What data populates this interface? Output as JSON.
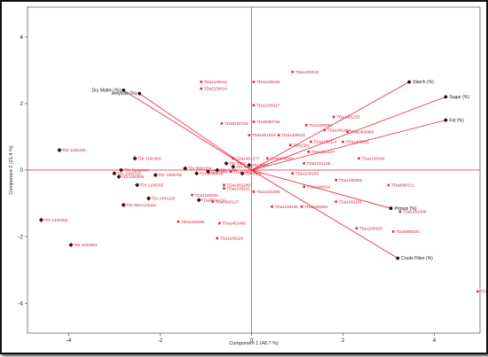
{
  "chart_data": {
    "type": "scatter",
    "xlabel": "Component 1  (48.7 %)",
    "ylabel": "Component 2  (21.4 %)",
    "xlim": [
      -4.9,
      5.0
    ],
    "ylim": [
      -4.9,
      4.9
    ],
    "xticks": [
      -4,
      -2,
      0,
      2,
      4
    ],
    "yticks": [
      -4,
      -2,
      0,
      2,
      4
    ],
    "accent_color": "#e8243a",
    "origin_lines_color": "#e8243a",
    "variables": [
      {
        "label": "Dry Matter (%)",
        "x": -2.8,
        "y": 2.4
      },
      {
        "label": "Amylose (%)",
        "x": -2.45,
        "y": 2.3
      },
      {
        "label": "Starch (%)",
        "x": 3.45,
        "y": 2.65
      },
      {
        "label": "Sugar (%)",
        "x": 4.25,
        "y": 2.2
      },
      {
        "label": "Fat (%)",
        "x": 4.25,
        "y": 1.5
      },
      {
        "label": "Protein (%)",
        "x": 3.05,
        "y": -1.15
      },
      {
        "label": "Crude Fibre (%)",
        "x": 3.2,
        "y": -2.65
      }
    ],
    "series": [
      {
        "name": "TDr",
        "marker": "diamond",
        "points": [
          {
            "label": "TDr 1400359",
            "x": -4.6,
            "y": -1.5
          },
          {
            "label": "TDr 1100053",
            "x": -3.95,
            "y": -2.25
          },
          {
            "label": "TDr 1100490",
            "x": -4.2,
            "y": 0.6
          },
          {
            "label": "TDr 1000793",
            "x": -3.0,
            "y": -0.1
          },
          {
            "label": "TDr-Ojuiyawo",
            "x": -2.85,
            "y": 0.0
          },
          {
            "label": "TDr1400005",
            "x": -2.9,
            "y": -0.2
          },
          {
            "label": "TDr-Mecca kusa",
            "x": -2.8,
            "y": -1.05
          },
          {
            "label": "TDr 1401220",
            "x": -2.25,
            "y": -0.85
          },
          {
            "label": "TDr 1100203",
            "x": -2.5,
            "y": -0.45
          },
          {
            "label": "TDr 1100300",
            "x": -2.55,
            "y": 0.35
          },
          {
            "label": "TDr 1000792",
            "x": -2.1,
            "y": -0.15
          },
          {
            "label": "TDr 0900154",
            "x": -1.45,
            "y": 0.05
          },
          {
            "label": "TDr 0000015",
            "x": -1.2,
            "y": -0.1
          },
          {
            "label": "TDr 0000",
            "x": -0.95,
            "y": -0.05
          },
          {
            "label": "TDr 1100",
            "x": -0.75,
            "y": 0.0
          },
          {
            "label": "TDr 1401",
            "x": -0.55,
            "y": 0.2
          },
          {
            "label": "TDr 1402",
            "x": -0.4,
            "y": 0.1
          },
          {
            "label": "TDr 0900",
            "x": -0.2,
            "y": -0.1
          },
          {
            "label": "TDr 0001",
            "x": -0.05,
            "y": 0.15
          },
          {
            "label": "TDa0601174",
            "x": -1.15,
            "y": -0.9
          }
        ]
      },
      {
        "name": "TDa",
        "marker": "square",
        "points": [
          {
            "label": "TDa1402043",
            "x": 0.9,
            "y": 2.95
          },
          {
            "label": "TDa1100193",
            "x": 0.05,
            "y": 2.65
          },
          {
            "label": "TDa1100242",
            "x": -1.1,
            "y": 2.65
          },
          {
            "label": "TDa1100414",
            "x": -1.1,
            "y": 2.45
          },
          {
            "label": "TDa1100317",
            "x": 0.05,
            "y": 1.95
          },
          {
            "label": "TDa0100793",
            "x": -0.65,
            "y": 1.4
          },
          {
            "label": "TDa0000794",
            "x": 0.05,
            "y": 1.45
          },
          {
            "label": "TDa1401919",
            "x": -0.05,
            "y": 1.05
          },
          {
            "label": "TDa1400010",
            "x": 0.6,
            "y": 1.05
          },
          {
            "label": "TDa1000994",
            "x": 1.2,
            "y": 1.35
          },
          {
            "label": "TDa1401253",
            "x": 1.8,
            "y": 1.6
          },
          {
            "label": "TDa1401684",
            "x": 1.6,
            "y": 1.2
          },
          {
            "label": "TDa1400080",
            "x": 2.1,
            "y": 1.15
          },
          {
            "label": "TDa1100114",
            "x": 1.3,
            "y": 0.85
          },
          {
            "label": "TDa1400051",
            "x": 2.0,
            "y": 0.85
          },
          {
            "label": "TDa1301",
            "x": 0.85,
            "y": 0.75
          },
          {
            "label": "TDa1401137",
            "x": 1.25,
            "y": 0.55
          },
          {
            "label": "TDa1401248",
            "x": 1.15,
            "y": 0.2
          },
          {
            "label": "TDa1100264",
            "x": 2.35,
            "y": 0.35
          },
          {
            "label": "TDa0900004",
            "x": 0.35,
            "y": 0.35
          },
          {
            "label": "TDa1401277",
            "x": -0.4,
            "y": 0.35
          },
          {
            "label": "TDa1100183",
            "x": 0.9,
            "y": -0.1
          },
          {
            "label": "TDa1000062",
            "x": 1.85,
            "y": -0.3
          },
          {
            "label": "TDa1400014",
            "x": 1.15,
            "y": -0.5
          },
          {
            "label": "TDa0900211",
            "x": 3.0,
            "y": -0.45
          },
          {
            "label": "TDa1100257",
            "x": -0.45,
            "y": -0.05
          },
          {
            "label": "TDa1401249",
            "x": -0.6,
            "y": -0.45
          },
          {
            "label": "TDa1100201",
            "x": -0.6,
            "y": -0.55
          },
          {
            "label": "TDa1100259",
            "x": 0.05,
            "y": -0.65
          },
          {
            "label": "TDa1100203",
            "x": -1.3,
            "y": -0.75
          },
          {
            "label": "TDa0900127",
            "x": -0.85,
            "y": -0.95
          },
          {
            "label": "TDa1100135",
            "x": 0.45,
            "y": -1.1
          },
          {
            "label": "TDa1300064",
            "x": 1.1,
            "y": -1.1
          },
          {
            "label": "TDa1401161",
            "x": 1.85,
            "y": -0.95
          },
          {
            "label": "TDa1401409",
            "x": 3.25,
            "y": -1.25
          },
          {
            "label": "TDa1100299",
            "x": -1.6,
            "y": -1.55
          },
          {
            "label": "TDa1401400",
            "x": -0.7,
            "y": -1.6
          },
          {
            "label": "TDa1100202",
            "x": 2.3,
            "y": -1.75
          },
          {
            "label": "TDa0900026",
            "x": 3.1,
            "y": -1.85
          },
          {
            "label": "TDa1100228",
            "x": -0.75,
            "y": -2.05
          },
          {
            "label": "TDa0900240",
            "x": 4.95,
            "y": -3.65
          }
        ]
      }
    ]
  }
}
